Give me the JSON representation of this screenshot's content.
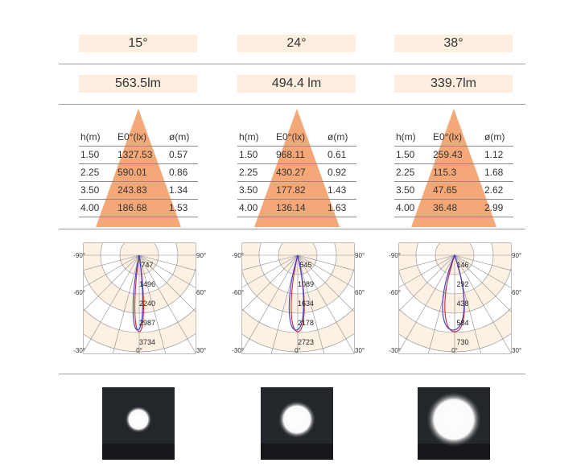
{
  "columns": [
    {
      "beam": "15°",
      "flux": "563.5lm",
      "table": {
        "headers": [
          "h(m)",
          "E0°(lx)",
          "ø(m)"
        ],
        "rows": [
          [
            "1.50",
            "1327.53",
            "0.57"
          ],
          [
            "2.25",
            "590.01",
            "0.86"
          ],
          [
            "3.50",
            "243.83",
            "1.34"
          ],
          [
            "4.00",
            "186.68",
            "1.53"
          ]
        ]
      },
      "polar": {
        "rings": [
          "747",
          "1496",
          "2240",
          "2987",
          "3734"
        ],
        "left_top": "-90°",
        "left_mid": "-60°",
        "left_bottom": "-30°",
        "right_top": "90°",
        "right_mid": "60°",
        "right_bottom": "30°",
        "center_bottom": "0°"
      },
      "spot_size": 0.3
    },
    {
      "beam": "24°",
      "flux": "494.4 lm",
      "table": {
        "headers": [
          "h(m)",
          "E0°(lx)",
          "ø(m)"
        ],
        "rows": [
          [
            "1.50",
            "968.11",
            "0.61"
          ],
          [
            "2.25",
            "430.27",
            "0.92"
          ],
          [
            "3.50",
            "177.82",
            "1.43"
          ],
          [
            "4.00",
            "136.14",
            "1.63"
          ]
        ]
      },
      "polar": {
        "rings": [
          "545",
          "1089",
          "1634",
          "2178",
          "2723"
        ],
        "left_top": "-90°",
        "left_mid": "-60°",
        "left_bottom": "-30°",
        "right_top": "90°",
        "right_mid": "60°",
        "right_bottom": "30°",
        "center_bottom": "0°"
      },
      "spot_size": 0.42
    },
    {
      "beam": "38°",
      "flux": "339.7lm",
      "table": {
        "headers": [
          "h(m)",
          "E0°(lx)",
          "ø(m)"
        ],
        "rows": [
          [
            "1.50",
            "259.43",
            "1.12"
          ],
          [
            "2.25",
            "115.3",
            "1.68"
          ],
          [
            "3.50",
            "47.65",
            "2.62"
          ],
          [
            "4.00",
            "36.48",
            "2.99"
          ]
        ]
      },
      "polar": {
        "rings": [
          "146",
          "292",
          "438",
          "584",
          "730"
        ],
        "left_top": "-90°",
        "left_mid": "-60°",
        "left_bottom": "-30°",
        "right_top": "90°",
        "right_mid": "60°",
        "right_bottom": "30°",
        "center_bottom": "0°"
      },
      "spot_size": 0.62
    }
  ],
  "colors": {
    "pill_bg": "#fdeee0",
    "triangle": "#f5a877",
    "polar_band": "#fdf1e4",
    "curve_red": "#d12a2a",
    "curve_blue": "#3b3bd6"
  }
}
